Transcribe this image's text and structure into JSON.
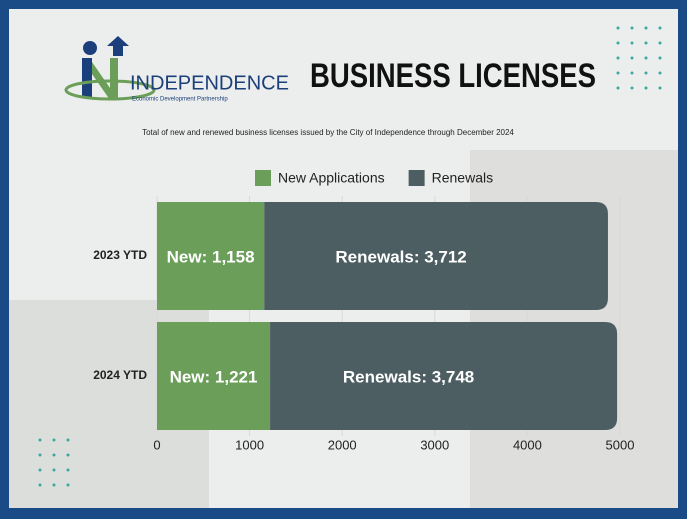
{
  "chart_data": {
    "type": "stacked-bar-horizontal",
    "logo_name": "INDEPENDENCE",
    "logo_tagline": "Economic Development Partnership",
    "title": "BUSINESS LICENSES",
    "subtitle": "Total of new and renewed business licenses issued by the City of Independence through December 2024",
    "categories": [
      "2023 YTD",
      "2024 YTD"
    ],
    "series": [
      {
        "name": "New Applications",
        "color": "#6b9e58",
        "values": [
          1158,
          1221
        ],
        "value_labels": [
          "New: 1,158",
          "New: 1,221"
        ]
      },
      {
        "name": "Renewals",
        "color": "#4c5e62",
        "values": [
          3712,
          3748
        ],
        "value_labels": [
          "Renewals: 3,712",
          "Renewals: 3,748"
        ]
      }
    ],
    "xlim": [
      0,
      5000
    ],
    "xticks": [
      0,
      1000,
      2000,
      3000,
      4000,
      5000
    ],
    "grid": true
  }
}
